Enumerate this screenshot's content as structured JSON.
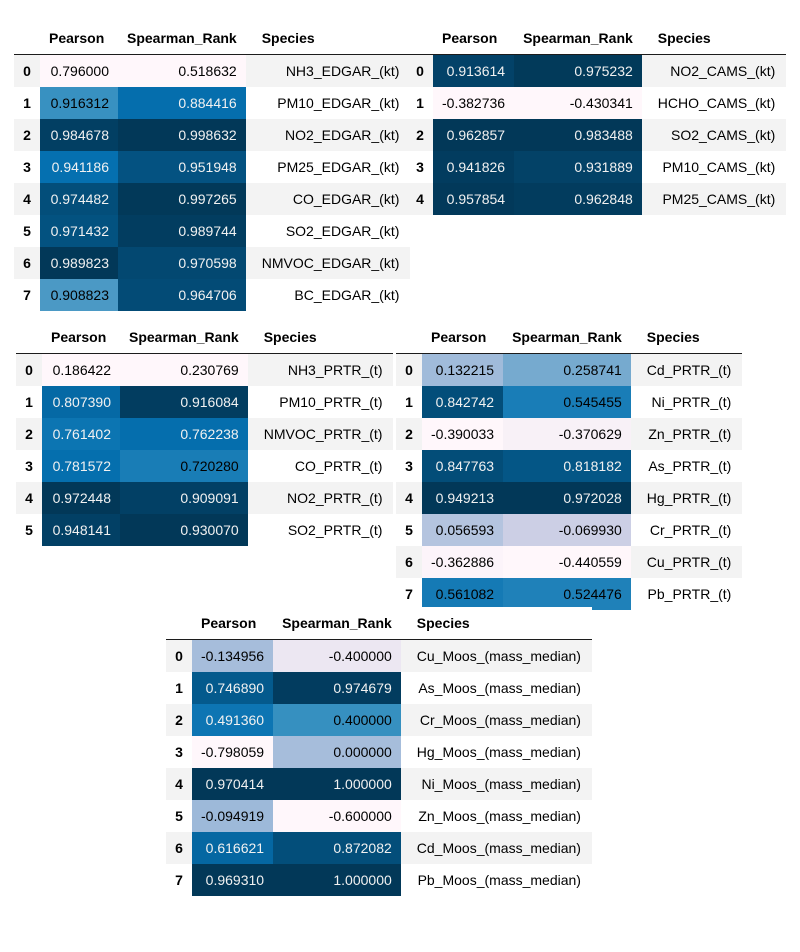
{
  "palette": {
    "page_background": "#ffffff",
    "stripe": "#f3f3f3",
    "header_rule": "#1c1c1c",
    "text_dark": "#000000",
    "text_light": "#f1f1f1",
    "gradient_min": "#fff7fb",
    "gradient_max": "#023858"
  },
  "columns": [
    "Pearson",
    "Spearman_Rank",
    "Species"
  ],
  "tables": [
    {
      "id": "edgar",
      "rows": [
        {
          "index": "0",
          "pearson": "0.796000",
          "pearson_bg": "#fff7fb",
          "pearson_fg": "#000000",
          "spearman": "0.518632",
          "spearman_bg": "#fff7fb",
          "spearman_fg": "#000000",
          "species": "NH3_EDGAR_(kt)"
        },
        {
          "index": "1",
          "pearson": "0.916312",
          "pearson_bg": "#3891c1",
          "pearson_fg": "#000000",
          "spearman": "0.884416",
          "spearman_bg": "#056ead",
          "spearman_fg": "#f1f1f1",
          "species": "PM10_EDGAR_(kt)"
        },
        {
          "index": "2",
          "pearson": "0.984678",
          "pearson_bg": "#023f63",
          "pearson_fg": "#f1f1f1",
          "spearman": "0.998632",
          "spearman_bg": "#023858",
          "spearman_fg": "#f1f1f1",
          "species": "NO2_EDGAR_(kt)"
        },
        {
          "index": "3",
          "pearson": "0.941186",
          "pearson_bg": "#0570b0",
          "pearson_fg": "#f1f1f1",
          "spearman": "0.951948",
          "spearman_bg": "#045281",
          "spearman_fg": "#f1f1f1",
          "species": "PM25_EDGAR_(kt)"
        },
        {
          "index": "4",
          "pearson": "0.974482",
          "pearson_bg": "#034e7a",
          "pearson_fg": "#f1f1f1",
          "spearman": "0.997265",
          "spearman_bg": "#023959",
          "spearman_fg": "#f1f1f1",
          "species": "CO_EDGAR_(kt)"
        },
        {
          "index": "5",
          "pearson": "0.971432",
          "pearson_bg": "#035280",
          "pearson_fg": "#f1f1f1",
          "spearman": "0.989744",
          "spearman_bg": "#023d60",
          "spearman_fg": "#f1f1f1",
          "species": "SO2_EDGAR_(kt)"
        },
        {
          "index": "6",
          "pearson": "0.989823",
          "pearson_bg": "#023858",
          "pearson_fg": "#f1f1f1",
          "spearman": "0.970598",
          "spearman_bg": "#034871",
          "spearman_fg": "#f1f1f1",
          "species": "NMVOC_EDGAR_(kt)"
        },
        {
          "index": "7",
          "pearson": "0.908823",
          "pearson_bg": "#4b99c5",
          "pearson_fg": "#000000",
          "spearman": "0.964706",
          "spearman_bg": "#034b76",
          "spearman_fg": "#f1f1f1",
          "species": "BC_EDGAR_(kt)"
        }
      ]
    },
    {
      "id": "cams",
      "rows": [
        {
          "index": "0",
          "pearson": "0.913614",
          "pearson_bg": "#034268",
          "pearson_fg": "#f1f1f1",
          "spearman": "0.975232",
          "spearman_bg": "#023a5a",
          "spearman_fg": "#f1f1f1",
          "species": "NO2_CAMS_(kt)"
        },
        {
          "index": "1",
          "pearson": "-0.382736",
          "pearson_bg": "#fff7fb",
          "pearson_fg": "#000000",
          "spearman": "-0.430341",
          "spearman_bg": "#fff7fb",
          "spearman_fg": "#000000",
          "species": "HCHO_CAMS_(kt)"
        },
        {
          "index": "2",
          "pearson": "0.962857",
          "pearson_bg": "#023858",
          "pearson_fg": "#f1f1f1",
          "spearman": "0.983488",
          "spearman_bg": "#023858",
          "spearman_fg": "#f1f1f1",
          "species": "SO2_CAMS_(kt)"
        },
        {
          "index": "3",
          "pearson": "0.941826",
          "pearson_bg": "#023c5f",
          "pearson_fg": "#f1f1f1",
          "spearman": "0.931889",
          "spearman_bg": "#034267",
          "spearman_fg": "#f1f1f1",
          "species": "PM10_CAMS_(kt)"
        },
        {
          "index": "4",
          "pearson": "0.957854",
          "pearson_bg": "#02395a",
          "pearson_fg": "#f1f1f1",
          "spearman": "0.962848",
          "spearman_bg": "#023c5e",
          "spearman_fg": "#f1f1f1",
          "species": "PM25_CAMS_(kt)"
        }
      ]
    },
    {
      "id": "prtr_gases",
      "rows": [
        {
          "index": "0",
          "pearson": "0.186422",
          "pearson_bg": "#fff7fb",
          "pearson_fg": "#000000",
          "spearman": "0.230769",
          "spearman_bg": "#fff7fb",
          "spearman_fg": "#000000",
          "species": "NH3_PRTR_(t)"
        },
        {
          "index": "1",
          "pearson": "0.807390",
          "pearson_bg": "#0569a5",
          "pearson_fg": "#f1f1f1",
          "spearman": "0.916084",
          "spearman_bg": "#023d60",
          "spearman_fg": "#f1f1f1",
          "species": "PM10_PRTR_(t)"
        },
        {
          "index": "2",
          "pearson": "0.761402",
          "pearson_bg": "#0c75b2",
          "pearson_fg": "#f1f1f1",
          "spearman": "0.762238",
          "spearman_bg": "#056ead",
          "spearman_fg": "#f1f1f1",
          "species": "NMVOC_PRTR_(t)"
        },
        {
          "index": "3",
          "pearson": "0.781572",
          "pearson_bg": "#056fae",
          "pearson_fg": "#f1f1f1",
          "spearman": "0.720280",
          "spearman_bg": "#197db6",
          "spearman_fg": "#000000",
          "species": "CO_PRTR_(t)"
        },
        {
          "index": "4",
          "pearson": "0.972448",
          "pearson_bg": "#023858",
          "pearson_fg": "#f1f1f1",
          "spearman": "0.909091",
          "spearman_bg": "#024065",
          "spearman_fg": "#f1f1f1",
          "species": "NO2_PRTR_(t)"
        },
        {
          "index": "5",
          "pearson": "0.948141",
          "pearson_bg": "#024065",
          "pearson_fg": "#f1f1f1",
          "spearman": "0.930070",
          "spearman_bg": "#023858",
          "spearman_fg": "#f1f1f1",
          "species": "SO2_PRTR_(t)"
        }
      ]
    },
    {
      "id": "prtr_metals",
      "rows": [
        {
          "index": "0",
          "pearson": "0.132215",
          "pearson_bg": "#a0bbda",
          "pearson_fg": "#000000",
          "spearman": "0.258741",
          "spearman_bg": "#76aacf",
          "spearman_fg": "#000000",
          "species": "Cd_PRTR_(t)"
        },
        {
          "index": "1",
          "pearson": "0.842742",
          "pearson_bg": "#034e7a",
          "pearson_fg": "#f1f1f1",
          "spearman": "0.545455",
          "spearman_bg": "#197db7",
          "spearman_fg": "#000000",
          "species": "Ni_PRTR_(t)"
        },
        {
          "index": "2",
          "pearson": "-0.390033",
          "pearson_bg": "#fff7fb",
          "pearson_fg": "#000000",
          "spearman": "-0.370629",
          "spearman_bg": "#f8f1f7",
          "spearman_fg": "#000000",
          "species": "Zn_PRTR_(t)"
        },
        {
          "index": "3",
          "pearson": "0.847763",
          "pearson_bg": "#034d78",
          "pearson_fg": "#f1f1f1",
          "spearman": "0.818182",
          "spearman_bg": "#045686",
          "spearman_fg": "#f1f1f1",
          "species": "As_PRTR_(t)"
        },
        {
          "index": "4",
          "pearson": "0.949213",
          "pearson_bg": "#023858",
          "pearson_fg": "#f1f1f1",
          "spearman": "0.972028",
          "spearman_bg": "#023858",
          "spearman_fg": "#f1f1f1",
          "species": "Hg_PRTR_(t)"
        },
        {
          "index": "5",
          "pearson": "0.056593",
          "pearson_bg": "#b4c4df",
          "pearson_fg": "#000000",
          "spearman": "-0.069930",
          "spearman_bg": "#cccfe5",
          "spearman_fg": "#000000",
          "species": "Cr_PRTR_(t)"
        },
        {
          "index": "6",
          "pearson": "-0.362886",
          "pearson_bg": "#fcf4fa",
          "pearson_fg": "#000000",
          "spearman": "-0.440559",
          "spearman_bg": "#fff7fb",
          "spearman_fg": "#000000",
          "species": "Cu_PRTR_(t)"
        },
        {
          "index": "7",
          "pearson": "0.561082",
          "pearson_bg": "#157ab5",
          "pearson_fg": "#000000",
          "spearman": "0.524476",
          "spearman_bg": "#1f81b9",
          "spearman_fg": "#000000",
          "species": "Pb_PRTR_(t)"
        }
      ]
    },
    {
      "id": "moos",
      "rows": [
        {
          "index": "0",
          "pearson": "-0.134956",
          "pearson_bg": "#a6bddb",
          "pearson_fg": "#000000",
          "spearman": "-0.400000",
          "spearman_bg": "#ece7f2",
          "spearman_fg": "#000000",
          "species": "Cu_Moos_(mass_median)"
        },
        {
          "index": "1",
          "pearson": "0.746890",
          "pearson_bg": "#045a8d",
          "pearson_fg": "#f1f1f1",
          "spearman": "0.974679",
          "spearman_bg": "#023c5f",
          "spearman_fg": "#f1f1f1",
          "species": "As_Moos_(mass_median)"
        },
        {
          "index": "2",
          "pearson": "0.491360",
          "pearson_bg": "#0d75b3",
          "pearson_fg": "#f1f1f1",
          "spearman": "0.400000",
          "spearman_bg": "#3690c0",
          "spearman_fg": "#000000",
          "species": "Cr_Moos_(mass_median)"
        },
        {
          "index": "3",
          "pearson": "-0.798059",
          "pearson_bg": "#fff7fb",
          "pearson_fg": "#000000",
          "spearman": "0.000000",
          "spearman_bg": "#a6bddb",
          "spearman_fg": "#000000",
          "species": "Hg_Moos_(mass_median)"
        },
        {
          "index": "4",
          "pearson": "0.970414",
          "pearson_bg": "#023858",
          "pearson_fg": "#f1f1f1",
          "spearman": "1.000000",
          "spearman_bg": "#023858",
          "spearman_fg": "#f1f1f1",
          "species": "Ni_Moos_(mass_median)"
        },
        {
          "index": "5",
          "pearson": "-0.094919",
          "pearson_bg": "#9db9d9",
          "pearson_fg": "#000000",
          "spearman": "-0.600000",
          "spearman_bg": "#fff7fb",
          "spearman_fg": "#000000",
          "species": "Zn_Moos_(mass_median)"
        },
        {
          "index": "6",
          "pearson": "0.616621",
          "pearson_bg": "#0567a2",
          "pearson_fg": "#f1f1f1",
          "spearman": "0.872082",
          "spearman_bg": "#034e7a",
          "spearman_fg": "#f1f1f1",
          "species": "Cd_Moos_(mass_median)"
        },
        {
          "index": "7",
          "pearson": "0.969310",
          "pearson_bg": "#023858",
          "pearson_fg": "#f1f1f1",
          "spearman": "1.000000",
          "spearman_bg": "#023858",
          "spearman_fg": "#f1f1f1",
          "species": "Pb_Moos_(mass_median)"
        }
      ]
    }
  ],
  "chart_data": [
    {
      "type": "table",
      "title": "EDGAR correlations",
      "columns": [
        "Pearson",
        "Spearman_Rank",
        "Species"
      ],
      "species": [
        "NH3_EDGAR_(kt)",
        "PM10_EDGAR_(kt)",
        "NO2_EDGAR_(kt)",
        "PM25_EDGAR_(kt)",
        "CO_EDGAR_(kt)",
        "SO2_EDGAR_(kt)",
        "NMVOC_EDGAR_(kt)",
        "BC_EDGAR_(kt)"
      ],
      "pearson": [
        0.796,
        0.916312,
        0.984678,
        0.941186,
        0.974482,
        0.971432,
        0.989823,
        0.908823
      ],
      "spearman_rank": [
        0.518632,
        0.884416,
        0.998632,
        0.951948,
        0.997265,
        0.989744,
        0.970598,
        0.964706
      ]
    },
    {
      "type": "table",
      "title": "CAMS correlations",
      "columns": [
        "Pearson",
        "Spearman_Rank",
        "Species"
      ],
      "species": [
        "NO2_CAMS_(kt)",
        "HCHO_CAMS_(kt)",
        "SO2_CAMS_(kt)",
        "PM10_CAMS_(kt)",
        "PM25_CAMS_(kt)"
      ],
      "pearson": [
        0.913614,
        -0.382736,
        0.962857,
        0.941826,
        0.957854
      ],
      "spearman_rank": [
        0.975232,
        -0.430341,
        0.983488,
        0.931889,
        0.962848
      ]
    },
    {
      "type": "table",
      "title": "PRTR gas correlations",
      "columns": [
        "Pearson",
        "Spearman_Rank",
        "Species"
      ],
      "species": [
        "NH3_PRTR_(t)",
        "PM10_PRTR_(t)",
        "NMVOC_PRTR_(t)",
        "CO_PRTR_(t)",
        "NO2_PRTR_(t)",
        "SO2_PRTR_(t)"
      ],
      "pearson": [
        0.186422,
        0.80739,
        0.761402,
        0.781572,
        0.972448,
        0.948141
      ],
      "spearman_rank": [
        0.230769,
        0.916084,
        0.762238,
        0.72028,
        0.909091,
        0.93007
      ]
    },
    {
      "type": "table",
      "title": "PRTR metal correlations",
      "columns": [
        "Pearson",
        "Spearman_Rank",
        "Species"
      ],
      "species": [
        "Cd_PRTR_(t)",
        "Ni_PRTR_(t)",
        "Zn_PRTR_(t)",
        "As_PRTR_(t)",
        "Hg_PRTR_(t)",
        "Cr_PRTR_(t)",
        "Cu_PRTR_(t)",
        "Pb_PRTR_(t)"
      ],
      "pearson": [
        0.132215,
        0.842742,
        -0.390033,
        0.847763,
        0.949213,
        0.056593,
        -0.362886,
        0.561082
      ],
      "spearman_rank": [
        0.258741,
        0.545455,
        -0.370629,
        0.818182,
        0.972028,
        -0.06993,
        -0.440559,
        0.524476
      ]
    },
    {
      "type": "table",
      "title": "Moos correlations",
      "columns": [
        "Pearson",
        "Spearman_Rank",
        "Species"
      ],
      "species": [
        "Cu_Moos_(mass_median)",
        "As_Moos_(mass_median)",
        "Cr_Moos_(mass_median)",
        "Hg_Moos_(mass_median)",
        "Ni_Moos_(mass_median)",
        "Zn_Moos_(mass_median)",
        "Cd_Moos_(mass_median)",
        "Pb_Moos_(mass_median)"
      ],
      "pearson": [
        -0.134956,
        0.74689,
        0.49136,
        -0.798059,
        0.970414,
        -0.094919,
        0.616621,
        0.96931
      ],
      "spearman_rank": [
        -0.4,
        0.974679,
        0.4,
        0.0,
        1.0,
        -0.6,
        0.872082,
        1.0
      ]
    }
  ]
}
